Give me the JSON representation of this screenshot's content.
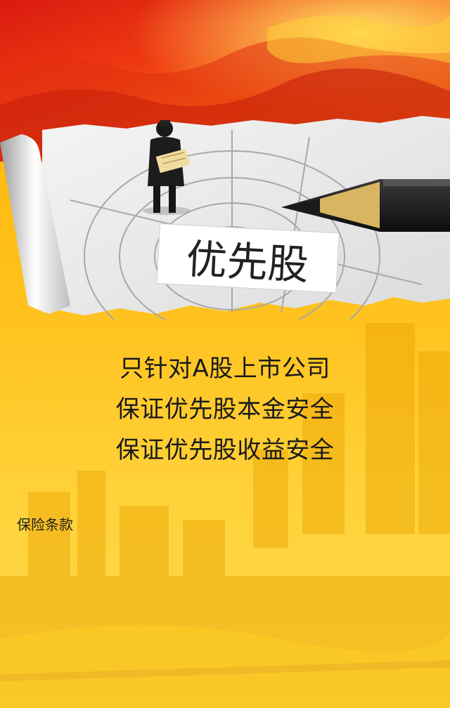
{
  "hero": {
    "stamp_text": "优先股"
  },
  "slogans": [
    "只针对A股上市公司",
    "保证优先股本金安全",
    "保证优先股收益安全"
  ],
  "links": {
    "insurance_terms": "保险条款"
  },
  "colors": {
    "banner_red": "#d91a0f",
    "banner_orange": "#f76a12",
    "background_yellow": "#ffc21f",
    "text_dark": "#1a1a1a"
  }
}
